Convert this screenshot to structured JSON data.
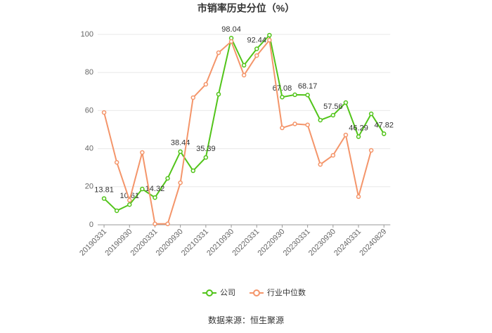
{
  "chart_data": {
    "type": "line",
    "title": "市销率历史分位（%）",
    "source": "数据来源：恒生聚源",
    "categories": [
      "20190331",
      null,
      "20190930",
      null,
      "20200331",
      null,
      "20200930",
      null,
      "20210331",
      null,
      "20210930",
      null,
      "20220331",
      null,
      "20220930",
      null,
      "20230331",
      null,
      "20230930",
      null,
      "20240331",
      null,
      "20240829"
    ],
    "series": [
      {
        "name": "公司",
        "color": "#52c41a",
        "values": [
          13.81,
          7.4,
          10.61,
          18.8,
          14.32,
          24.4,
          38.44,
          28.4,
          35.39,
          68.6,
          98.04,
          83.8,
          92.44,
          99.6,
          67.08,
          68.3,
          68.17,
          55,
          57.56,
          64.2,
          46.29,
          58.3,
          47.82
        ],
        "value_labels": [
          "13.81",
          null,
          "10.61",
          null,
          "14.32",
          null,
          "38.44",
          null,
          "35.39",
          null,
          "98.04",
          null,
          "92.44",
          null,
          "67.08",
          null,
          "68.17",
          null,
          "57.56",
          null,
          "46.29",
          null,
          "47.82"
        ]
      },
      {
        "name": "行业中位数",
        "color": "#f4956a",
        "values": [
          59,
          32.8,
          12.9,
          38,
          0.5,
          0.5,
          22.1,
          66.8,
          73.8,
          90.4,
          96.3,
          78.6,
          88.9,
          97,
          50.9,
          53,
          52.5,
          31.7,
          36.5,
          47.2,
          14.8,
          39.1,
          null
        ]
      }
    ],
    "ylim": [
      0,
      100
    ],
    "yticks": [
      0,
      20,
      40,
      60,
      80,
      100
    ],
    "grid": true,
    "legend": "bottom"
  }
}
